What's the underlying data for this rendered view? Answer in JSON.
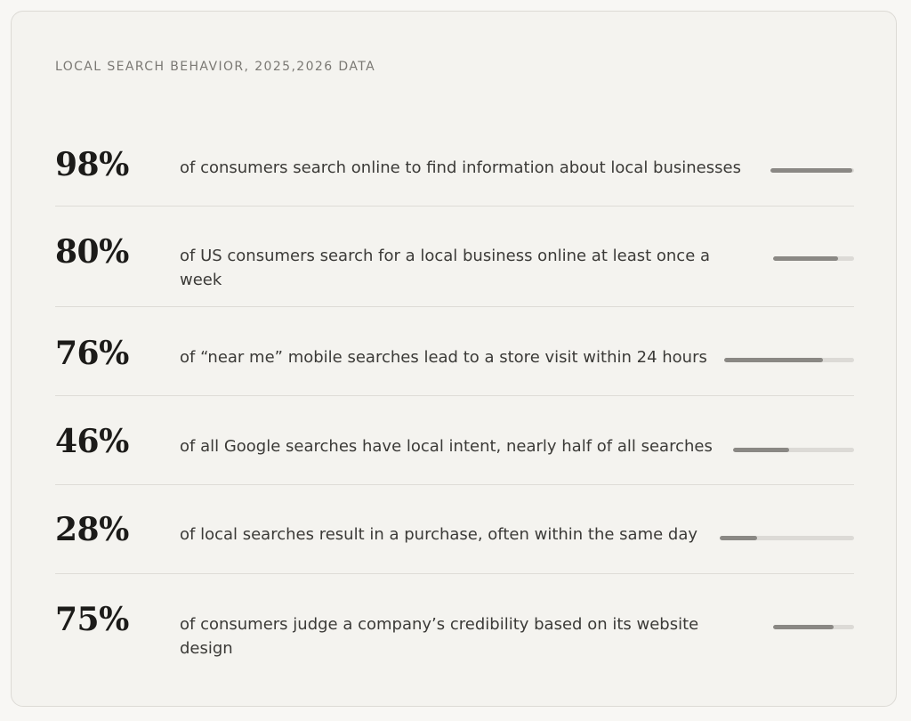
{
  "header": {
    "eyebrow": "LOCAL SEARCH BEHAVIOR, 2025,2026 DATA"
  },
  "stats": [
    {
      "value": "98%",
      "text": "of consumers search online to find information about local businesses",
      "fill": 0.98
    },
    {
      "value": "80%",
      "text": "of US consumers search for a local business online at least once a week",
      "fill": 0.8
    },
    {
      "value": "76%",
      "text": "of “near me” mobile searches lead to a store visit within 24 hours",
      "fill": 0.76
    },
    {
      "value": "46%",
      "text": "of all Google searches have local intent, nearly half of all searches",
      "fill": 0.46
    },
    {
      "value": "28%",
      "text": "of local searches result in a purchase, often within the same day",
      "fill": 0.28
    },
    {
      "value": "75%",
      "text": "of consumers judge a company’s credibility based on its website design",
      "fill": 0.75
    }
  ],
  "colors": {
    "bar_fill": "#8a8884",
    "bar_track": "#dcdad6",
    "card_bg": "#f4f3ef"
  }
}
